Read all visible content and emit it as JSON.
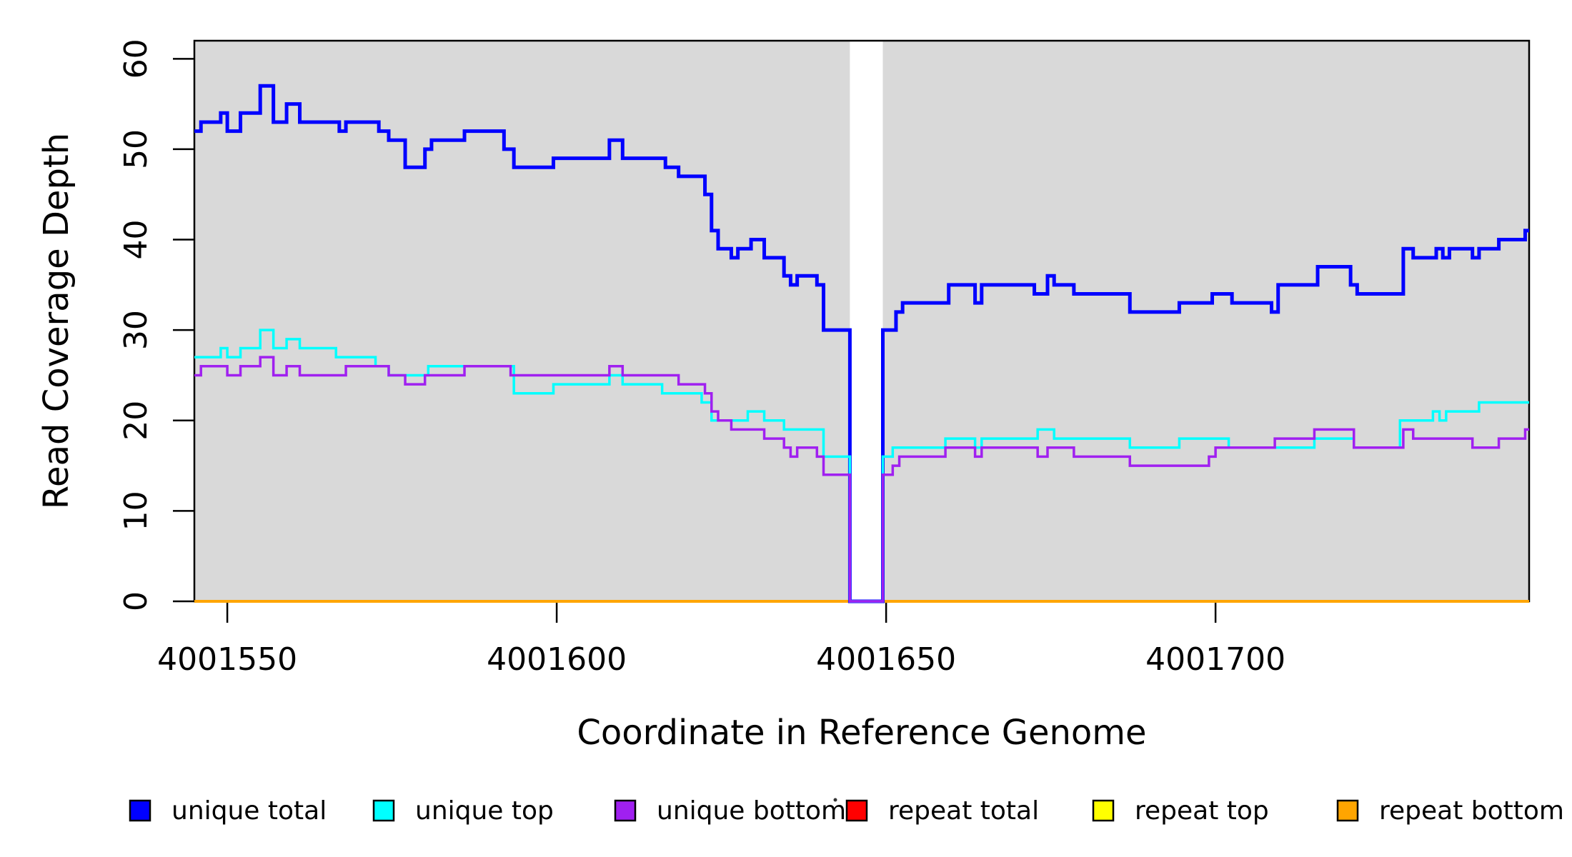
{
  "figure": {
    "xlabel": "Coordinate in Reference Genome",
    "ylabel": "Read Coverage Depth"
  },
  "legend": {
    "items": [
      {
        "label": "unique total",
        "color": "#0000FF"
      },
      {
        "label": "unique top",
        "color": "#00FFFF"
      },
      {
        "label": "unique bottom",
        "color": "#A020F0"
      },
      {
        "label": "repeat total",
        "color": "#FF0000"
      },
      {
        "label": "repeat top",
        "color": "#FFFF00"
      },
      {
        "label": "repeat bottom",
        "color": "#FFA500"
      }
    ]
  },
  "chart_data": {
    "type": "line",
    "subtype": "step",
    "title": "",
    "xlabel": "Coordinate in Reference Genome",
    "ylabel": "Read Coverage Depth",
    "xlim": [
      4001545,
      4001747.6
    ],
    "ylim": [
      0,
      62
    ],
    "x_ticks": [
      4001550,
      4001600,
      4001650,
      4001700
    ],
    "y_ticks": [
      0,
      10,
      20,
      30,
      40,
      50,
      60
    ],
    "grid": false,
    "legend_position": "bottom",
    "plot_background": "#D9D9D9",
    "repeat_region": {
      "x_start": 4001644.5,
      "x_end": 4001649.5,
      "fill": "#FFFFFF"
    },
    "series": [
      {
        "name": "repeat total",
        "color": "#FF0000",
        "width": 3,
        "points": [
          [
            4001545,
            0
          ]
        ]
      },
      {
        "name": "repeat top",
        "color": "#FFFF00",
        "width": 3,
        "points": [
          [
            4001545,
            0
          ]
        ]
      },
      {
        "name": "repeat bottom",
        "color": "#FFA500",
        "width": 4,
        "points": [
          [
            4001545,
            0
          ]
        ]
      },
      {
        "name": "unique total",
        "color": "#0000FF",
        "width": 5,
        "points": [
          [
            4001545,
            52
          ],
          [
            4001546,
            53
          ],
          [
            4001549,
            54
          ],
          [
            4001550,
            52
          ],
          [
            4001552,
            54
          ],
          [
            4001555,
            57
          ],
          [
            4001557,
            53
          ],
          [
            4001559,
            55
          ],
          [
            4001561,
            53
          ],
          [
            4001567,
            52
          ],
          [
            4001568,
            53
          ],
          [
            4001573,
            52
          ],
          [
            4001574.5,
            51
          ],
          [
            4001577,
            48
          ],
          [
            4001580,
            50
          ],
          [
            4001581,
            51
          ],
          [
            4001586,
            52
          ],
          [
            4001592,
            50
          ],
          [
            4001593.5,
            48
          ],
          [
            4001599.5,
            49
          ],
          [
            4001608,
            51
          ],
          [
            4001610,
            49
          ],
          [
            4001616.5,
            48
          ],
          [
            4001618.5,
            47
          ],
          [
            4001622.5,
            45
          ],
          [
            4001623.5,
            41
          ],
          [
            4001624.5,
            39
          ],
          [
            4001626.5,
            38
          ],
          [
            4001627.5,
            39
          ],
          [
            4001629.5,
            40
          ],
          [
            4001631.5,
            38
          ],
          [
            4001634.5,
            36
          ],
          [
            4001635.5,
            35
          ],
          [
            4001636.5,
            36
          ],
          [
            4001639.5,
            35
          ],
          [
            4001640.5,
            30
          ],
          [
            4001644.5,
            0
          ],
          [
            4001649.5,
            30
          ],
          [
            4001651.5,
            32
          ],
          [
            4001652.5,
            33
          ],
          [
            4001659.5,
            35
          ],
          [
            4001663.5,
            33
          ],
          [
            4001664.5,
            35
          ],
          [
            4001672.5,
            34
          ],
          [
            4001674.5,
            36
          ],
          [
            4001675.5,
            35
          ],
          [
            4001678.5,
            34
          ],
          [
            4001687,
            32
          ],
          [
            4001694.5,
            33
          ],
          [
            4001699.5,
            34
          ],
          [
            4001702.5,
            33
          ],
          [
            4001708.5,
            32
          ],
          [
            4001709.5,
            35
          ],
          [
            4001715.5,
            37
          ],
          [
            4001720.5,
            35
          ],
          [
            4001721.5,
            34
          ],
          [
            4001728.5,
            39
          ],
          [
            4001730,
            38
          ],
          [
            4001733.5,
            39
          ],
          [
            4001734.5,
            38
          ],
          [
            4001735.5,
            39
          ],
          [
            4001739,
            38
          ],
          [
            4001740,
            39
          ],
          [
            4001743,
            40
          ],
          [
            4001747,
            41
          ]
        ]
      },
      {
        "name": "unique top",
        "color": "#00FFFF",
        "width": 3.5,
        "points": [
          [
            4001545,
            27
          ],
          [
            4001549,
            28
          ],
          [
            4001550,
            27
          ],
          [
            4001552,
            28
          ],
          [
            4001555,
            30
          ],
          [
            4001557,
            28
          ],
          [
            4001559,
            29
          ],
          [
            4001561,
            28
          ],
          [
            4001566.5,
            27
          ],
          [
            4001572.5,
            26
          ],
          [
            4001574.5,
            25
          ],
          [
            4001580.5,
            26
          ],
          [
            4001593.5,
            23
          ],
          [
            4001599.5,
            24
          ],
          [
            4001608,
            25
          ],
          [
            4001610,
            24
          ],
          [
            4001616,
            23
          ],
          [
            4001622,
            22
          ],
          [
            4001623.5,
            20
          ],
          [
            4001629,
            21
          ],
          [
            4001631.5,
            20
          ],
          [
            4001634.5,
            19
          ],
          [
            4001640.5,
            16
          ],
          [
            4001644.5,
            0
          ],
          [
            4001649.5,
            16
          ],
          [
            4001651,
            17
          ],
          [
            4001659,
            18
          ],
          [
            4001663.5,
            17
          ],
          [
            4001664.5,
            18
          ],
          [
            4001673,
            19
          ],
          [
            4001675.5,
            18
          ],
          [
            4001687,
            17
          ],
          [
            4001694.5,
            18
          ],
          [
            4001702,
            17
          ],
          [
            4001715,
            18
          ],
          [
            4001721,
            17
          ],
          [
            4001728,
            20
          ],
          [
            4001733,
            21
          ],
          [
            4001734,
            20
          ],
          [
            4001735,
            21
          ],
          [
            4001740,
            22
          ]
        ]
      },
      {
        "name": "unique bottom",
        "color": "#A020F0",
        "width": 3.5,
        "points": [
          [
            4001545,
            25
          ],
          [
            4001546,
            26
          ],
          [
            4001550,
            25
          ],
          [
            4001552,
            26
          ],
          [
            4001555,
            27
          ],
          [
            4001557,
            25
          ],
          [
            4001559,
            26
          ],
          [
            4001561,
            25
          ],
          [
            4001568,
            26
          ],
          [
            4001574.5,
            25
          ],
          [
            4001577,
            24
          ],
          [
            4001580,
            25
          ],
          [
            4001586,
            26
          ],
          [
            4001593,
            25
          ],
          [
            4001608,
            26
          ],
          [
            4001610,
            25
          ],
          [
            4001618.5,
            24
          ],
          [
            4001622.5,
            23
          ],
          [
            4001623.5,
            21
          ],
          [
            4001624.5,
            20
          ],
          [
            4001626.5,
            19
          ],
          [
            4001631.5,
            18
          ],
          [
            4001634.5,
            17
          ],
          [
            4001635.5,
            16
          ],
          [
            4001636.5,
            17
          ],
          [
            4001639.5,
            16
          ],
          [
            4001640.5,
            14
          ],
          [
            4001644.5,
            0
          ],
          [
            4001649.5,
            14
          ],
          [
            4001651,
            15
          ],
          [
            4001652,
            16
          ],
          [
            4001659,
            17
          ],
          [
            4001663.5,
            16
          ],
          [
            4001664.5,
            17
          ],
          [
            4001673,
            16
          ],
          [
            4001674.5,
            17
          ],
          [
            4001678.5,
            16
          ],
          [
            4001687,
            15
          ],
          [
            4001699,
            16
          ],
          [
            4001700,
            17
          ],
          [
            4001709,
            18
          ],
          [
            4001715,
            19
          ],
          [
            4001721,
            17
          ],
          [
            4001728.5,
            19
          ],
          [
            4001730,
            18
          ],
          [
            4001739,
            17
          ],
          [
            4001743,
            18
          ],
          [
            4001747,
            19
          ]
        ]
      }
    ]
  }
}
